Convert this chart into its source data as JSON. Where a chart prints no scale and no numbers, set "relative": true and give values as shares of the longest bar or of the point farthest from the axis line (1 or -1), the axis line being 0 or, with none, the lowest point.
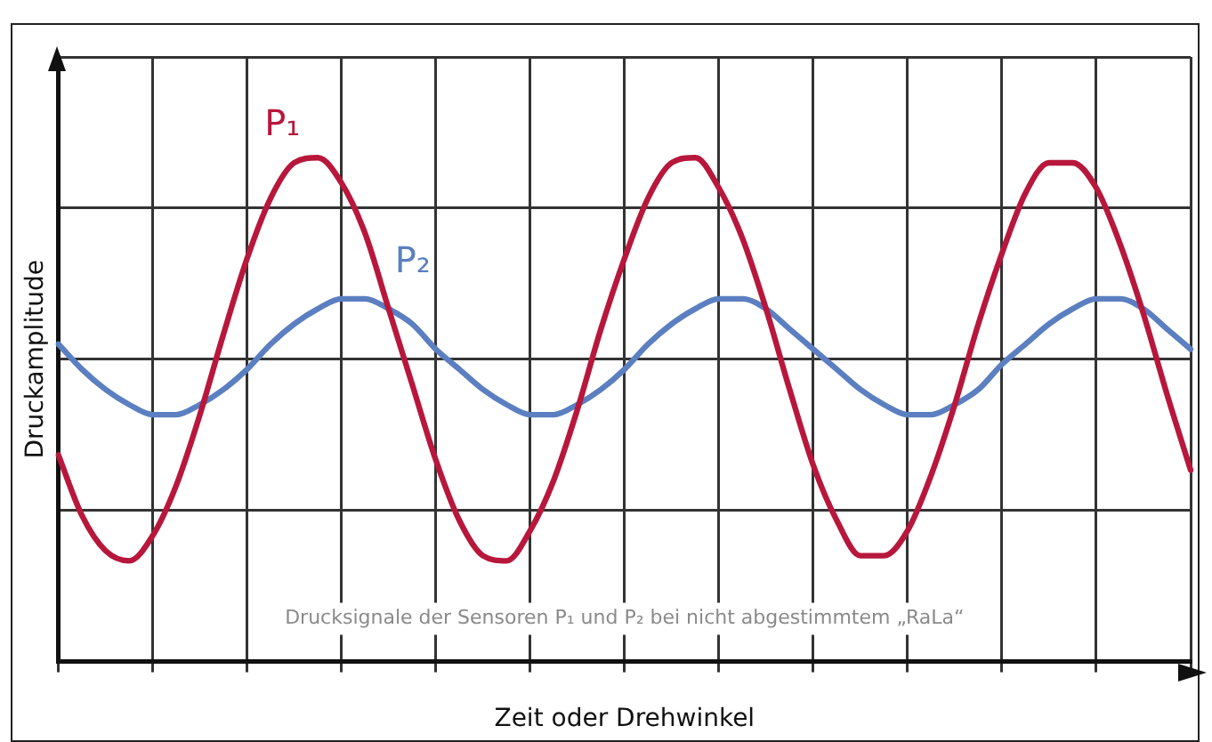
{
  "chart_data": {
    "type": "line",
    "relative": true,
    "xlabel": "Zeit oder Drehwinkel",
    "ylabel": "Druckamplitude",
    "grid": true,
    "legend": false,
    "marker": "none",
    "line_style": "solid",
    "categories": [
      null,
      null,
      null,
      null,
      null,
      null,
      null,
      null,
      null,
      null,
      null,
      null,
      null,
      null,
      null,
      null,
      null,
      null,
      null,
      null,
      null,
      null,
      null,
      null,
      null,
      null,
      null,
      null,
      null,
      null,
      null,
      null,
      null,
      null,
      null,
      null,
      null,
      null,
      null,
      null,
      null,
      null,
      null,
      null,
      null,
      null,
      null,
      null,
      null
    ],
    "series": [
      {
        "name": "P₁",
        "color": "#b8173c",
        "values": [
          0.41,
          0.29,
          0.22,
          0.2,
          0.25,
          0.35,
          0.49,
          0.65,
          0.8,
          0.92,
          0.99,
          1.0,
          0.95,
          0.85,
          0.7,
          0.55,
          0.4,
          0.28,
          0.21,
          0.2,
          0.26,
          0.36,
          0.5,
          0.66,
          0.8,
          0.92,
          0.99,
          1.0,
          0.94,
          0.84,
          0.7,
          0.54,
          0.39,
          0.28,
          0.21,
          0.21,
          0.26,
          0.37,
          0.51,
          0.67,
          0.81,
          0.93,
          0.99,
          0.99,
          0.94,
          0.83,
          0.69,
          0.53,
          0.38
        ]
      },
      {
        "name": "P₂",
        "color": "#5b7fc0",
        "values": [
          0.63,
          0.58,
          0.54,
          0.51,
          0.49,
          0.49,
          0.51,
          0.54,
          0.58,
          0.63,
          0.67,
          0.7,
          0.72,
          0.72,
          0.7,
          0.67,
          0.62,
          0.58,
          0.54,
          0.51,
          0.49,
          0.49,
          0.51,
          0.54,
          0.58,
          0.63,
          0.67,
          0.7,
          0.72,
          0.72,
          0.7,
          0.66,
          0.62,
          0.58,
          0.54,
          0.51,
          0.49,
          0.49,
          0.51,
          0.54,
          0.59,
          0.63,
          0.67,
          0.7,
          0.72,
          0.72,
          0.7,
          0.66,
          0.62
        ]
      }
    ],
    "annotations": [
      "Drucksignale der Sensoren P₁ und P₂ bei nicht abgestimmtem „RaLa“"
    ]
  }
}
